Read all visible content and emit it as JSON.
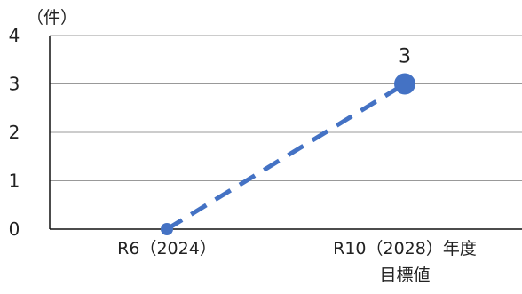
{
  "chart_data": {
    "type": "line",
    "title": "",
    "xlabel": "",
    "ylabel": "（件）",
    "categories": [
      "R6（2024）",
      "R10（2028）年度\n目標値"
    ],
    "series": [
      {
        "values": [
          0,
          3
        ],
        "data_labels": [
          "",
          "3"
        ]
      }
    ],
    "ylim": [
      0,
      4
    ],
    "yticks": [
      0,
      1,
      2,
      3,
      4
    ],
    "grid": true,
    "legend": "none",
    "line_style": "dashed",
    "series_color": "#4472C4",
    "grid_color": "#999999",
    "axis_color": "#111111"
  }
}
